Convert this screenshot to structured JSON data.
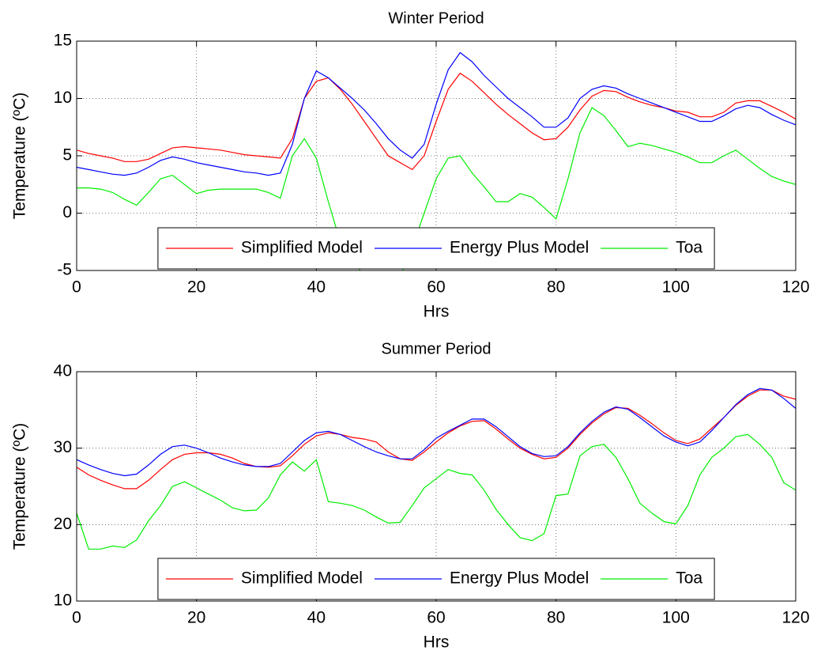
{
  "chart_data": [
    {
      "type": "line",
      "title": "Winter Period",
      "xlabel": "Hrs",
      "ylabel": "Temperature (ºC)",
      "x": [
        0,
        2,
        4,
        6,
        8,
        10,
        12,
        14,
        16,
        18,
        20,
        22,
        24,
        26,
        28,
        30,
        32,
        34,
        36,
        38,
        40,
        42,
        44,
        46,
        48,
        50,
        52,
        54,
        56,
        58,
        60,
        62,
        64,
        66,
        68,
        70,
        72,
        74,
        76,
        78,
        80,
        82,
        84,
        86,
        88,
        90,
        92,
        94,
        96,
        98,
        100,
        102,
        104,
        106,
        108,
        110,
        112,
        114,
        116,
        118,
        120
      ],
      "series": [
        {
          "name": "Simplified Model",
          "color": "#ff0000",
          "values": [
            5.5,
            5.2,
            5.0,
            4.8,
            4.5,
            4.5,
            4.7,
            5.2,
            5.7,
            5.8,
            5.7,
            5.6,
            5.5,
            5.3,
            5.1,
            5.0,
            4.9,
            4.8,
            6.5,
            10.0,
            11.5,
            11.8,
            10.8,
            9.5,
            8.0,
            6.5,
            5.0,
            4.4,
            3.8,
            5.0,
            8.0,
            10.8,
            12.2,
            11.5,
            10.5,
            9.5,
            8.6,
            7.8,
            7.0,
            6.4,
            6.5,
            7.5,
            9.0,
            10.2,
            10.7,
            10.6,
            10.1,
            9.7,
            9.4,
            9.2,
            8.9,
            8.8,
            8.4,
            8.4,
            8.8,
            9.6,
            9.8,
            9.8,
            9.3,
            8.8,
            8.2
          ]
        },
        {
          "name": "Energy Plus Model",
          "color": "#0000ff",
          "values": [
            4.0,
            3.8,
            3.6,
            3.4,
            3.3,
            3.5,
            4.0,
            4.6,
            4.9,
            4.7,
            4.4,
            4.2,
            4.0,
            3.8,
            3.6,
            3.5,
            3.3,
            3.5,
            6.0,
            10.0,
            12.4,
            11.8,
            10.9,
            10.0,
            9.0,
            7.8,
            6.5,
            5.5,
            4.8,
            6.0,
            9.5,
            12.5,
            14.0,
            13.2,
            12.0,
            11.0,
            10.0,
            9.2,
            8.4,
            7.5,
            7.5,
            8.3,
            10.0,
            10.8,
            11.1,
            10.9,
            10.4,
            10.0,
            9.6,
            9.2,
            8.8,
            8.4,
            8.0,
            8.0,
            8.5,
            9.1,
            9.4,
            9.2,
            8.6,
            8.1,
            7.7
          ]
        },
        {
          "name": "Toa",
          "color": "#00ee00",
          "values": [
            2.2,
            2.2,
            2.1,
            1.8,
            1.2,
            0.7,
            1.8,
            3.0,
            3.3,
            2.5,
            1.7,
            2.0,
            2.1,
            2.1,
            2.1,
            2.1,
            1.8,
            1.3,
            5.0,
            6.5,
            4.8,
            1.0,
            -2.5,
            -4.0,
            -5.5,
            -5.5,
            -5.5,
            -5.5,
            -3.0,
            0.0,
            3.0,
            4.8,
            5.0,
            3.5,
            2.3,
            1.0,
            1.0,
            1.7,
            1.4,
            0.5,
            -0.5,
            3.0,
            7.0,
            9.2,
            8.5,
            7.2,
            5.8,
            6.1,
            5.9,
            5.6,
            5.3,
            4.9,
            4.4,
            4.4,
            5.0,
            5.5,
            4.7,
            3.9,
            3.2,
            2.8,
            2.5
          ]
        }
      ],
      "xlim": [
        0,
        120
      ],
      "xticks": [
        0,
        20,
        40,
        60,
        80,
        100,
        120
      ],
      "ylim": [
        -5,
        15
      ],
      "yticks": [
        -5,
        0,
        5,
        10,
        15
      ],
      "grid": true,
      "legend": "lower center"
    },
    {
      "type": "line",
      "title": "Summer Period",
      "xlabel": "Hrs",
      "ylabel": "Temperature (ºC)",
      "x": [
        0,
        2,
        4,
        6,
        8,
        10,
        12,
        14,
        16,
        18,
        20,
        22,
        24,
        26,
        28,
        30,
        32,
        34,
        36,
        38,
        40,
        42,
        44,
        46,
        48,
        50,
        52,
        54,
        56,
        58,
        60,
        62,
        64,
        66,
        68,
        70,
        72,
        74,
        76,
        78,
        80,
        82,
        84,
        86,
        88,
        90,
        92,
        94,
        96,
        98,
        100,
        102,
        104,
        106,
        108,
        110,
        112,
        114,
        116,
        118,
        120
      ],
      "series": [
        {
          "name": "Simplified Model",
          "color": "#ff0000",
          "values": [
            27.5,
            26.5,
            25.8,
            25.2,
            24.7,
            24.7,
            25.8,
            27.2,
            28.5,
            29.2,
            29.4,
            29.4,
            29.2,
            28.7,
            28.0,
            27.6,
            27.5,
            27.7,
            29.0,
            30.5,
            31.6,
            32.0,
            31.8,
            31.4,
            31.2,
            30.8,
            29.5,
            28.6,
            28.4,
            29.5,
            30.8,
            32.0,
            32.9,
            33.5,
            33.6,
            32.5,
            31.2,
            30.0,
            29.2,
            28.6,
            28.8,
            30.0,
            31.8,
            33.3,
            34.5,
            35.3,
            35.2,
            34.3,
            33.2,
            32.0,
            31.0,
            30.6,
            31.2,
            32.6,
            34.0,
            35.6,
            36.8,
            37.6,
            37.6,
            36.8,
            36.4
          ]
        },
        {
          "name": "Energy Plus Model",
          "color": "#0000ff",
          "values": [
            28.5,
            27.8,
            27.2,
            26.7,
            26.4,
            26.6,
            27.8,
            29.2,
            30.2,
            30.4,
            30.0,
            29.4,
            28.7,
            28.2,
            27.8,
            27.6,
            27.6,
            28.0,
            29.5,
            31.0,
            32.0,
            32.2,
            31.8,
            31.0,
            30.2,
            29.5,
            29.0,
            28.6,
            28.6,
            29.8,
            31.3,
            32.2,
            33.0,
            33.8,
            33.8,
            32.8,
            31.5,
            30.2,
            29.3,
            28.9,
            29.0,
            30.2,
            32.0,
            33.5,
            34.7,
            35.4,
            35.1,
            34.0,
            32.8,
            31.6,
            30.8,
            30.3,
            30.8,
            32.3,
            34.0,
            35.7,
            37.0,
            37.8,
            37.6,
            36.5,
            35.2
          ]
        },
        {
          "name": "Toa",
          "color": "#00ee00",
          "values": [
            21.5,
            16.8,
            16.8,
            17.2,
            17.0,
            18.0,
            20.5,
            22.5,
            25.0,
            25.6,
            24.8,
            24.0,
            23.2,
            22.2,
            21.8,
            21.9,
            23.5,
            26.5,
            28.2,
            27.0,
            28.5,
            23.0,
            22.8,
            22.5,
            21.9,
            21.0,
            20.2,
            20.3,
            22.5,
            24.8,
            26.0,
            27.2,
            26.7,
            26.5,
            24.5,
            22.0,
            20.0,
            18.3,
            17.9,
            18.8,
            23.8,
            24.0,
            29.0,
            30.2,
            30.5,
            28.8,
            26.0,
            22.8,
            21.5,
            20.4,
            20.1,
            22.5,
            26.5,
            28.8,
            30.0,
            31.5,
            31.8,
            30.5,
            28.8,
            25.5,
            24.5
          ]
        }
      ],
      "xlim": [
        0,
        120
      ],
      "xticks": [
        0,
        20,
        40,
        60,
        80,
        100,
        120
      ],
      "ylim": [
        10,
        40
      ],
      "yticks": [
        10,
        20,
        30,
        40
      ],
      "grid": true,
      "legend": "lower center"
    }
  ]
}
